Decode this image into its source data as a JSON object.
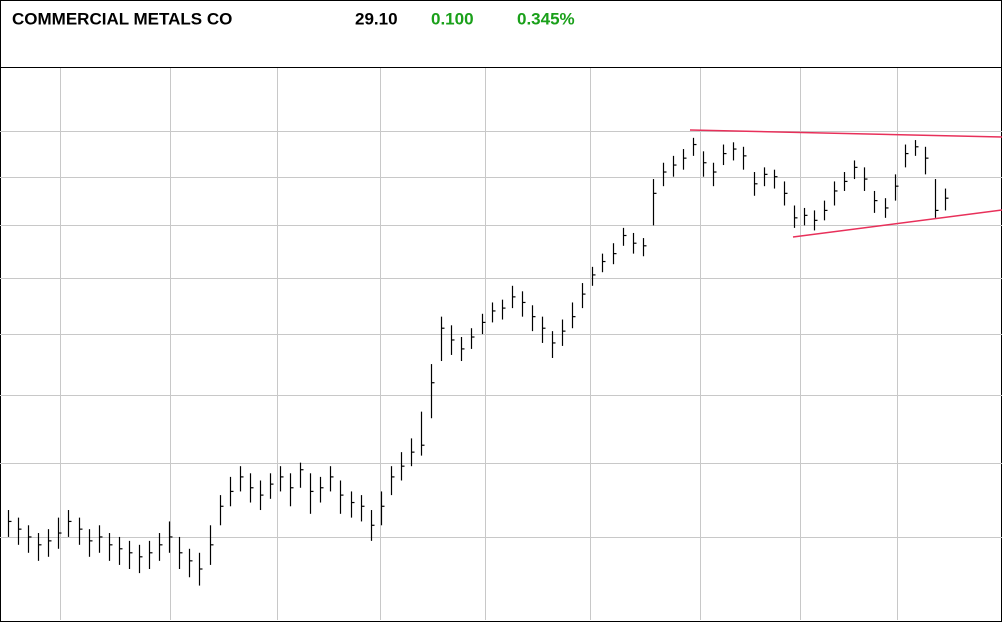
{
  "header": {
    "title": "COMMERCIAL METALS CO",
    "price": "29.10",
    "change": "0.100",
    "change_pct": "0.345%"
  },
  "chart_data": {
    "type": "ohlc",
    "log_scale": true,
    "grid": true,
    "color": "#000000",
    "ylim": [
      16,
      35
    ],
    "yticks": [
      18,
      20,
      22,
      24,
      26,
      28,
      30,
      32
    ],
    "high": [
      18.7,
      18.5,
      18.3,
      18.1,
      18.2,
      18.5,
      18.7,
      18.5,
      18.2,
      18.3,
      18.1,
      18.0,
      17.9,
      17.8,
      17.9,
      18.1,
      18.4,
      18.0,
      17.7,
      17.6,
      18.3,
      19.1,
      19.6,
      19.9,
      19.7,
      19.5,
      19.7,
      19.9,
      19.7,
      20.0,
      19.7,
      19.6,
      19.9,
      19.5,
      19.2,
      19.1,
      18.7,
      19.2,
      19.9,
      20.3,
      20.7,
      21.5,
      23.0,
      24.6,
      24.3,
      23.9,
      24.2,
      24.7,
      25.1,
      25.2,
      25.7,
      25.5,
      25.0,
      24.6,
      24.1,
      24.5,
      25.1,
      25.8,
      26.4,
      26.9,
      27.3,
      27.9,
      27.7,
      27.5,
      29.9,
      30.6,
      30.9,
      31.2,
      31.7,
      31.1,
      30.6,
      31.4,
      31.5,
      31.3,
      30.2,
      30.4,
      30.3,
      29.8,
      28.8,
      28.7,
      28.6,
      29.0,
      29.8,
      30.2,
      30.7,
      30.4,
      29.4,
      29.1,
      30.1,
      31.4,
      31.6,
      31.3,
      29.9,
      29.5
    ],
    "low": [
      18.0,
      17.8,
      17.6,
      17.4,
      17.5,
      17.7,
      18.0,
      17.8,
      17.5,
      17.6,
      17.4,
      17.3,
      17.2,
      17.1,
      17.2,
      17.4,
      17.6,
      17.2,
      17.0,
      16.8,
      17.3,
      18.3,
      18.8,
      19.2,
      18.9,
      18.7,
      19.0,
      19.2,
      18.8,
      19.3,
      18.6,
      18.9,
      19.2,
      18.6,
      18.5,
      18.4,
      17.9,
      18.3,
      19.1,
      19.5,
      19.9,
      20.2,
      21.3,
      23.1,
      23.3,
      23.1,
      23.5,
      24.0,
      24.4,
      24.5,
      24.9,
      24.6,
      24.1,
      23.7,
      23.2,
      23.6,
      24.2,
      24.9,
      25.7,
      26.2,
      26.5,
      27.2,
      26.9,
      26.8,
      28.0,
      29.6,
      30.0,
      30.3,
      30.9,
      30.0,
      29.6,
      30.5,
      30.7,
      30.3,
      29.2,
      29.6,
      29.5,
      28.8,
      27.9,
      28.0,
      27.8,
      28.2,
      28.8,
      29.4,
      29.9,
      29.4,
      28.5,
      28.3,
      29.0,
      30.4,
      30.9,
      30.1,
      28.3,
      28.6
    ],
    "close": [
      18.4,
      18.2,
      18.0,
      17.8,
      17.9,
      18.1,
      18.4,
      18.2,
      17.9,
      18.0,
      17.8,
      17.7,
      17.6,
      17.5,
      17.6,
      17.8,
      18.0,
      17.6,
      17.4,
      17.2,
      17.8,
      18.8,
      19.2,
      19.6,
      19.3,
      19.1,
      19.4,
      19.6,
      19.3,
      19.8,
      19.2,
      19.3,
      19.6,
      19.1,
      18.9,
      18.8,
      18.3,
      18.8,
      19.6,
      19.9,
      20.3,
      20.5,
      22.4,
      24.2,
      23.8,
      23.5,
      23.9,
      24.4,
      24.8,
      24.9,
      25.3,
      25.1,
      24.6,
      24.2,
      23.7,
      24.1,
      24.6,
      25.4,
      26.1,
      26.6,
      26.9,
      27.6,
      27.3,
      27.2,
      29.3,
      30.2,
      30.5,
      30.8,
      31.4,
      30.6,
      30.2,
      31.0,
      31.2,
      30.9,
      29.7,
      30.1,
      30.0,
      29.3,
      28.3,
      28.4,
      28.2,
      28.6,
      29.4,
      29.8,
      30.4,
      29.9,
      29.0,
      28.7,
      29.6,
      31.0,
      31.3,
      30.8,
      28.6,
      29.1
    ]
  }
}
